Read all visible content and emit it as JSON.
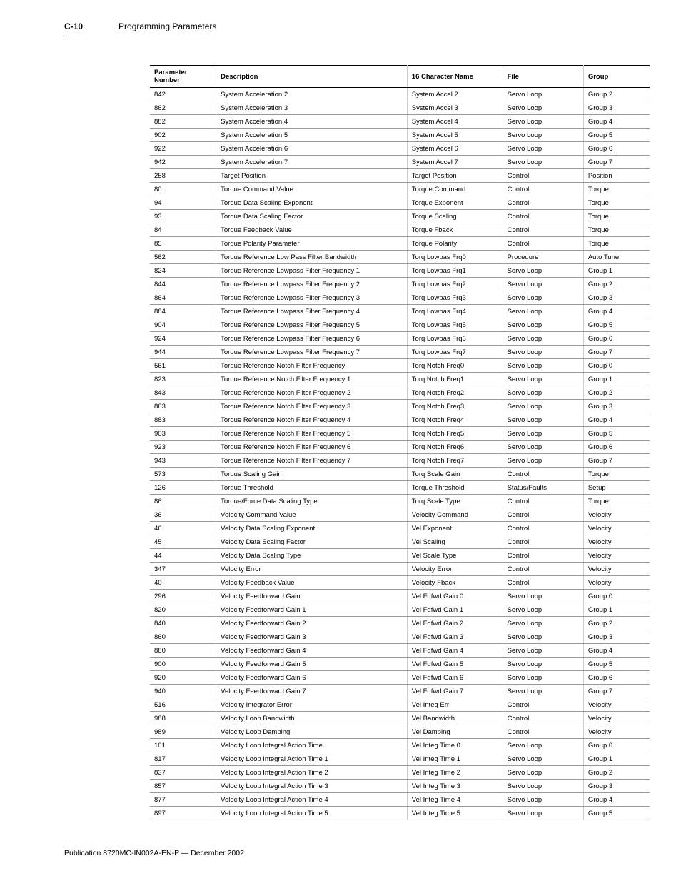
{
  "header": {
    "page_number": "C-10",
    "section_title": "Programming Parameters"
  },
  "table": {
    "columns": [
      "Parameter Number",
      "Description",
      "16 Character Name",
      "File",
      "Group"
    ],
    "rows": [
      [
        "842",
        "System Acceleration 2",
        "System Accel 2",
        "Servo Loop",
        "Group 2"
      ],
      [
        "862",
        "System Acceleration 3",
        "System Accel 3",
        "Servo Loop",
        "Group 3"
      ],
      [
        "882",
        "System Acceleration 4",
        "System Accel 4",
        "Servo Loop",
        "Group 4"
      ],
      [
        "902",
        "System Acceleration 5",
        "System Accel 5",
        "Servo Loop",
        "Group 5"
      ],
      [
        "922",
        "System Acceleration 6",
        "System Accel 6",
        "Servo Loop",
        "Group 6"
      ],
      [
        "942",
        "System Acceleration 7",
        "System Accel 7",
        "Servo Loop",
        "Group 7"
      ],
      [
        "258",
        "Target Position",
        "Target Position",
        "Control",
        "Position"
      ],
      [
        "80",
        "Torque Command Value",
        "Torque Command",
        "Control",
        "Torque"
      ],
      [
        "94",
        "Torque Data Scaling Exponent",
        "Torque Exponent",
        "Control",
        "Torque"
      ],
      [
        "93",
        "Torque Data Scaling Factor",
        "Torque Scaling",
        "Control",
        "Torque"
      ],
      [
        "84",
        "Torque Feedback Value",
        "Torque Fback",
        "Control",
        "Torque"
      ],
      [
        "85",
        "Torque Polarity Parameter",
        "Torque Polarity",
        "Control",
        "Torque"
      ],
      [
        "562",
        "Torque Reference Low Pass Filter Bandwidth",
        "Torq Lowpas Frq0",
        "Procedure",
        "Auto Tune"
      ],
      [
        "824",
        "Torque Reference Lowpass Filter Frequency 1",
        "Torq Lowpas Frq1",
        "Servo Loop",
        "Group 1"
      ],
      [
        "844",
        "Torque Reference Lowpass Filter Frequency 2",
        "Torq Lowpas Frq2",
        "Servo Loop",
        "Group 2"
      ],
      [
        "864",
        "Torque Reference Lowpass Filter Frequency 3",
        "Torq Lowpas Frq3",
        "Servo Loop",
        "Group 3"
      ],
      [
        "884",
        "Torque Reference Lowpass Filter Frequency 4",
        "Torq Lowpas Frq4",
        "Servo Loop",
        "Group 4"
      ],
      [
        "904",
        "Torque Reference Lowpass Filter Frequency 5",
        "Torq Lowpas Frq5",
        "Servo Loop",
        "Group 5"
      ],
      [
        "924",
        "Torque Reference Lowpass Filter Frequency 6",
        "Torq Lowpas Frq6",
        "Servo Loop",
        "Group 6"
      ],
      [
        "944",
        "Torque Reference Lowpass Filter Frequency 7",
        "Torq Lowpas Frq7",
        "Servo Loop",
        "Group 7"
      ],
      [
        "561",
        "Torque Reference Notch Filter Frequency",
        "Torq Notch Freq0",
        "Servo Loop",
        "Group 0"
      ],
      [
        "823",
        "Torque Reference Notch Filter Frequency 1",
        "Torq Notch Freq1",
        "Servo Loop",
        "Group 1"
      ],
      [
        "843",
        "Torque Reference Notch Filter Frequency 2",
        "Torq Notch Freq2",
        "Servo Loop",
        "Group 2"
      ],
      [
        "863",
        "Torque Reference Notch Filter Frequency 3",
        "Torq Notch Freq3",
        "Servo Loop",
        "Group 3"
      ],
      [
        "883",
        "Torque Reference Notch Filter Frequency 4",
        "Torq Notch Freq4",
        "Servo Loop",
        "Group 4"
      ],
      [
        "903",
        "Torque Reference Notch Filter Frequency 5",
        "Torq Notch Freq5",
        "Servo Loop",
        "Group 5"
      ],
      [
        "923",
        "Torque Reference Notch Filter Frequency 6",
        "Torq Notch Freq6",
        "Servo Loop",
        "Group 6"
      ],
      [
        "943",
        "Torque Reference Notch Filter Frequency 7",
        "Torq Notch Freq7",
        "Servo Loop",
        "Group 7"
      ],
      [
        "573",
        "Torque Scaling Gain",
        "Torq Scale Gain",
        "Control",
        "Torque"
      ],
      [
        "126",
        "Torque Threshold",
        "Torque Threshold",
        "Status/Faults",
        "Setup"
      ],
      [
        "86",
        "Torque/Force Data Scaling Type",
        "Torq Scale Type",
        "Control",
        "Torque"
      ],
      [
        "36",
        "Velocity Command Value",
        "Velocity Command",
        "Control",
        "Velocity"
      ],
      [
        "46",
        "Velocity Data Scaling Exponent",
        "Vel Exponent",
        "Control",
        "Velocity"
      ],
      [
        "45",
        "Velocity Data Scaling Factor",
        "Vel Scaling",
        "Control",
        "Velocity"
      ],
      [
        "44",
        "Velocity Data Scaling Type",
        "Vel Scale Type",
        "Control",
        "Velocity"
      ],
      [
        "347",
        "Velocity Error",
        "Velocity Error",
        "Control",
        "Velocity"
      ],
      [
        "40",
        "Velocity Feedback Value",
        "Velocity Fback",
        "Control",
        "Velocity"
      ],
      [
        "296",
        "Velocity Feedforward Gain",
        "Vel Fdfwd Gain 0",
        "Servo Loop",
        "Group 0"
      ],
      [
        "820",
        "Velocity Feedforward Gain 1",
        "Vel Fdfwd Gain 1",
        "Servo Loop",
        "Group 1"
      ],
      [
        "840",
        "Velocity Feedforward Gain 2",
        "Vel Fdfwd Gain 2",
        "Servo Loop",
        "Group 2"
      ],
      [
        "860",
        "Velocity Feedforward Gain 3",
        "Vel Fdfwd Gain 3",
        "Servo Loop",
        "Group 3"
      ],
      [
        "880",
        "Velocity Feedforward Gain 4",
        "Vel Fdfwd Gain 4",
        "Servo Loop",
        "Group 4"
      ],
      [
        "900",
        "Velocity Feedforward Gain 5",
        "Vel Fdfwd Gain 5",
        "Servo Loop",
        "Group 5"
      ],
      [
        "920",
        "Velocity Feedforward Gain 6",
        "Vel Fdfwd Gain 6",
        "Servo Loop",
        "Group 6"
      ],
      [
        "940",
        "Velocity Feedforward Gain 7",
        "Vel Fdfwd Gain 7",
        "Servo Loop",
        "Group 7"
      ],
      [
        "516",
        "Velocity Integrator Error",
        "Vel Integ Err",
        "Control",
        "Velocity"
      ],
      [
        "988",
        "Velocity Loop Bandwidth",
        "Vel Bandwidth",
        "Control",
        "Velocity"
      ],
      [
        "989",
        "Velocity Loop Damping",
        "Vel Damping",
        "Control",
        "Velocity"
      ],
      [
        "101",
        "Velocity Loop Integral Action Time",
        "Vel Integ Time 0",
        "Servo Loop",
        "Group 0"
      ],
      [
        "817",
        "Velocity Loop Integral Action Time 1",
        "Vel Integ Time 1",
        "Servo Loop",
        "Group 1"
      ],
      [
        "837",
        "Velocity Loop Integral Action Time 2",
        "Vel Integ Time 2",
        "Servo Loop",
        "Group 2"
      ],
      [
        "857",
        "Velocity Loop Integral Action Time 3",
        "Vel Integ Time 3",
        "Servo Loop",
        "Group 3"
      ],
      [
        "877",
        "Velocity Loop Integral Action Time 4",
        "Vel Integ Time 4",
        "Servo Loop",
        "Group 4"
      ],
      [
        "897",
        "Velocity Loop Integral Action Time 5",
        "Vel Integ Time 5",
        "Servo Loop",
        "Group 5"
      ]
    ]
  },
  "footer": {
    "publication": "Publication 8720MC-IN002A-EN-P — December 2002"
  }
}
